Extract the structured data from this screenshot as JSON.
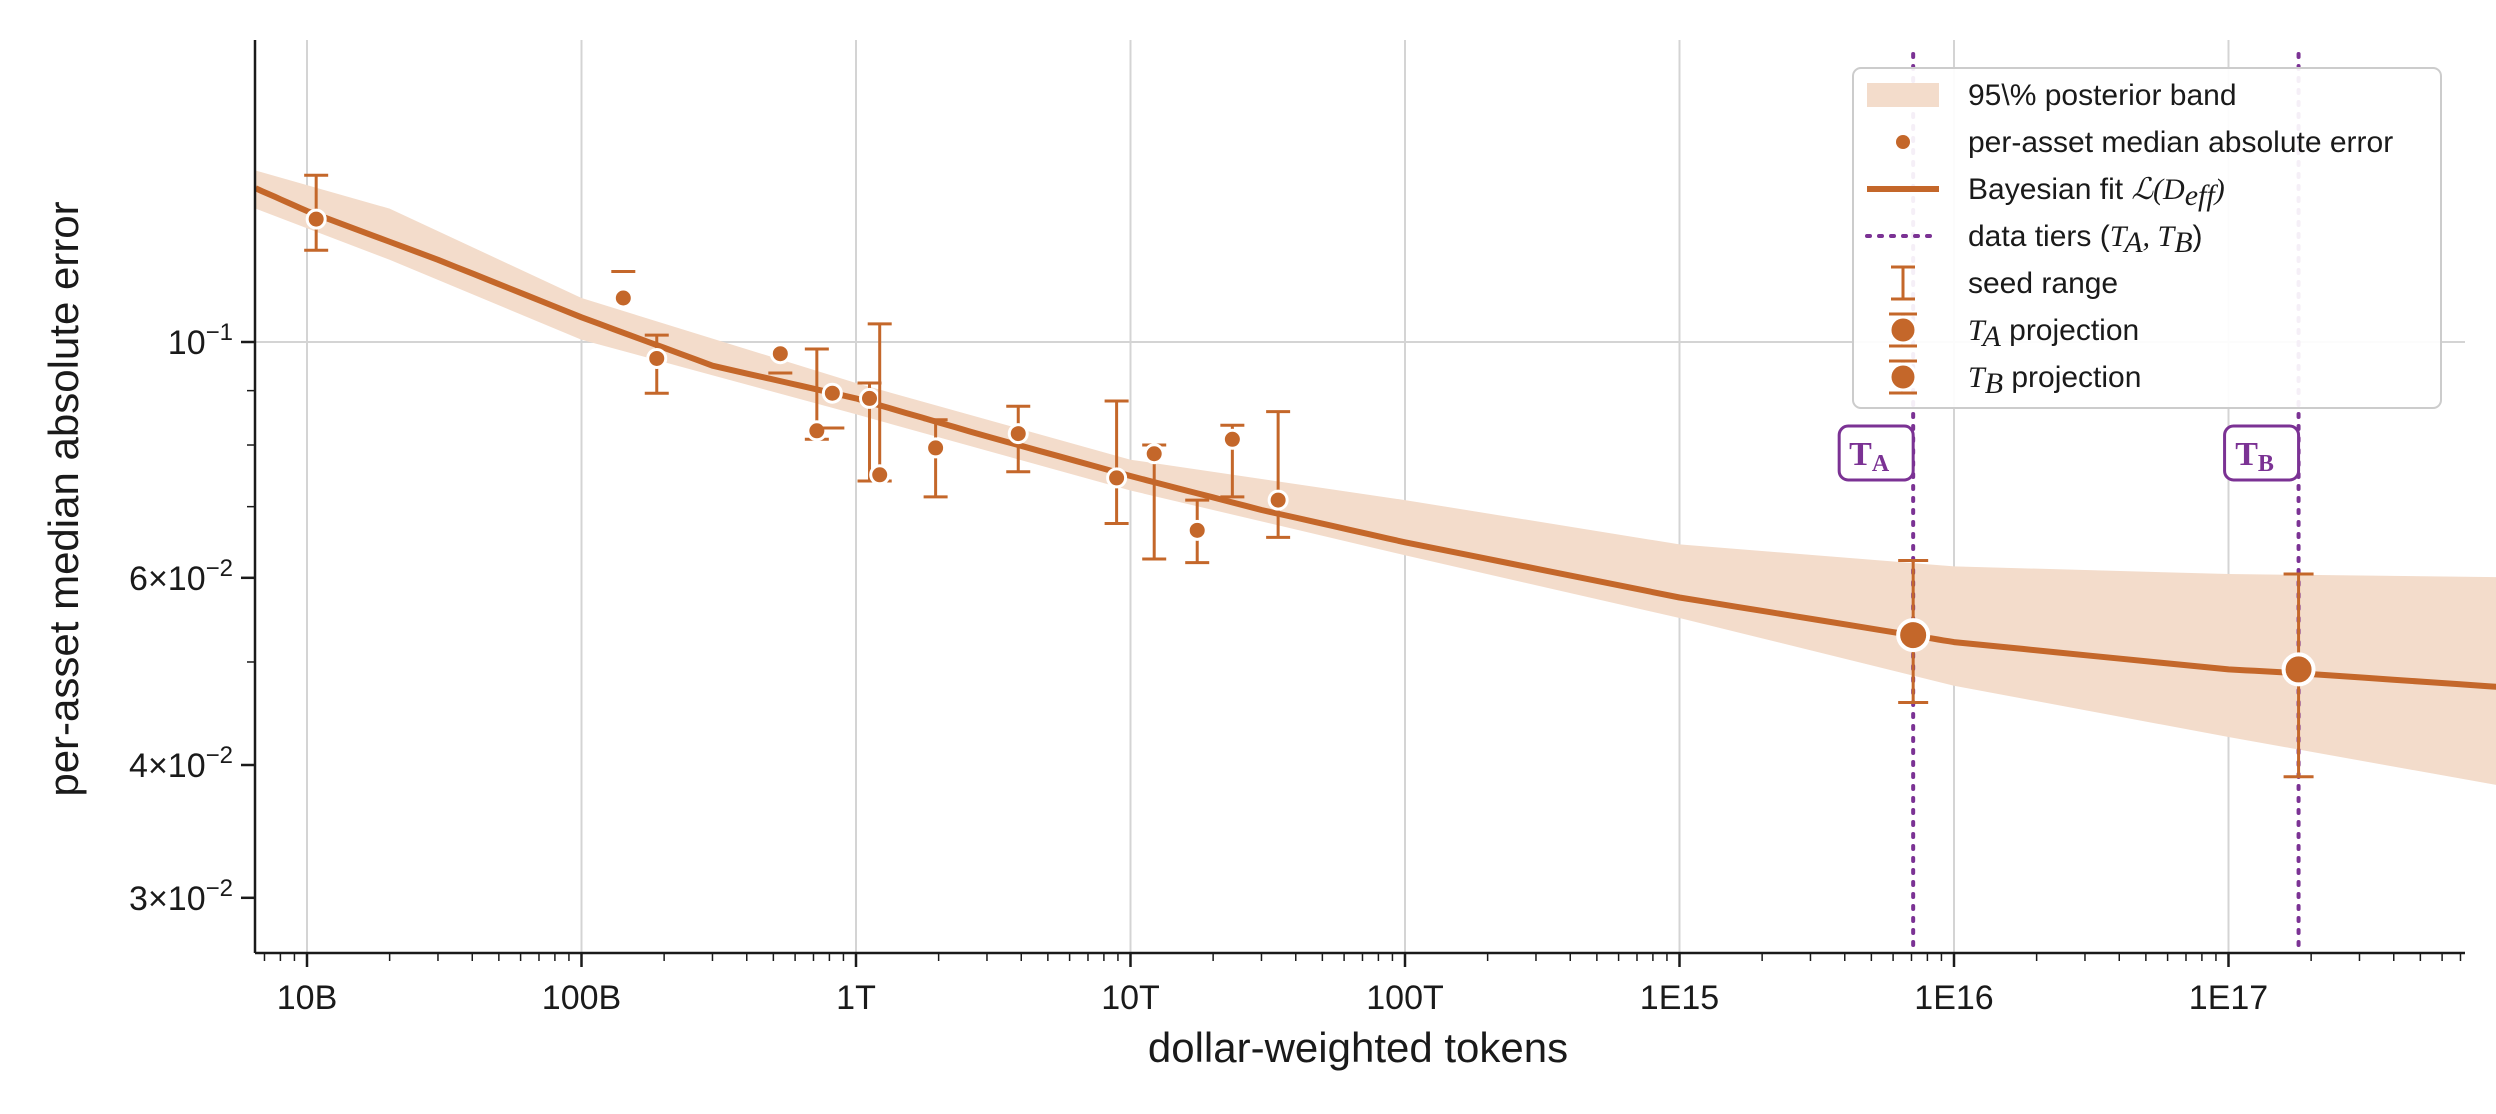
{
  "colors": {
    "main": "#c4672a",
    "band": "#f3dccb",
    "tier": "#7b3294",
    "grid": "#d4d4d4",
    "axis": "#1a1a1a"
  },
  "chart_data": {
    "type": "scatter",
    "xlabel": "dollar-weighted tokens",
    "ylabel": "per-asset median absolute error",
    "x_scale": "log",
    "y_scale": "log",
    "xlim": [
      6500000000.0,
      2.8e+18
    ],
    "ylim": [
      0.0268,
      0.174
    ],
    "grid": true,
    "legend_position": "top-right",
    "x_ticks": [
      {
        "value": 10000000000.0,
        "label": "10B"
      },
      {
        "value": 100000000000.0,
        "label": "100B"
      },
      {
        "value": 1000000000000.0,
        "label": "1T"
      },
      {
        "value": 10000000000000.0,
        "label": "10T"
      },
      {
        "value": 100000000000000.0,
        "label": "100T"
      },
      {
        "value": 1000000000000000.0,
        "label": "1E15"
      },
      {
        "value": 1e+16,
        "label": "1E16"
      },
      {
        "value": 1e+17,
        "label": "1E17"
      }
    ],
    "y_ticks": [
      {
        "value": 0.1,
        "base": "10",
        "exp": "−1"
      },
      {
        "value": 0.06,
        "base": "6×10",
        "exp": "−2"
      },
      {
        "value": 0.04,
        "base": "4×10",
        "exp": "−2"
      },
      {
        "value": 0.03,
        "base": "3×10",
        "exp": "−2"
      }
    ],
    "y_minor_ticks": [
      0.05,
      0.07,
      0.08,
      0.09
    ],
    "band": [
      {
        "x": 6500000000.0,
        "low": 0.1335,
        "high": 0.145
      },
      {
        "x": 20000000000.0,
        "low": 0.1195,
        "high": 0.1335
      },
      {
        "x": 100000000000.0,
        "low": 0.1005,
        "high": 0.11
      },
      {
        "x": 1000000000000.0,
        "low": 0.0855,
        "high": 0.0915
      },
      {
        "x": 10000000000000.0,
        "low": 0.0725,
        "high": 0.0775
      },
      {
        "x": 100000000000000.0,
        "low": 0.063,
        "high": 0.071
      },
      {
        "x": 1000000000000000.0,
        "low": 0.055,
        "high": 0.0645
      },
      {
        "x": 1e+16,
        "low": 0.0475,
        "high": 0.0615
      },
      {
        "x": 1e+17,
        "low": 0.0425,
        "high": 0.0605
      },
      {
        "x": 1.5e+18,
        "low": 0.0375,
        "high": 0.06
      }
    ],
    "fit": [
      {
        "x": 6500000000.0,
        "y": 0.1395
      },
      {
        "x": 10000000000.0,
        "y": 0.1328
      },
      {
        "x": 30000000000.0,
        "y": 0.1195
      },
      {
        "x": 100000000000.0,
        "y": 0.1055
      },
      {
        "x": 300000000000.0,
        "y": 0.095
      },
      {
        "x": 1000000000000.0,
        "y": 0.0885
      },
      {
        "x": 3000000000000.0,
        "y": 0.0815
      },
      {
        "x": 10000000000000.0,
        "y": 0.0748
      },
      {
        "x": 30000000000000.0,
        "y": 0.0695
      },
      {
        "x": 100000000000000.0,
        "y": 0.0648
      },
      {
        "x": 1000000000000000.0,
        "y": 0.0575
      },
      {
        "x": 7000000000000000.0,
        "y": 0.053
      },
      {
        "x": 1e+16,
        "y": 0.0522
      },
      {
        "x": 1e+17,
        "y": 0.0492
      },
      {
        "x": 1.8e+17,
        "y": 0.0488
      },
      {
        "x": 1.5e+18,
        "y": 0.047
      }
    ],
    "points": [
      {
        "x": 10800000000.0,
        "y": 0.1305,
        "ylo": 0.122,
        "yhi": 0.1435
      },
      {
        "x": 142000000000.0,
        "y": 0.11,
        "ylo": null,
        "yhi": 0.1165
      },
      {
        "x": 188000000000.0,
        "y": 0.0965,
        "ylo": 0.0895,
        "yhi": 0.1015
      },
      {
        "x": 530000000000.0,
        "y": 0.0975,
        "ylo": 0.0935,
        "yhi": null
      },
      {
        "x": 720000000000.0,
        "y": 0.0825,
        "ylo": 0.081,
        "yhi": 0.0985
      },
      {
        "x": 820000000000.0,
        "y": 0.0895,
        "ylo": 0.083,
        "yhi": null
      },
      {
        "x": 1120000000000.0,
        "y": 0.0885,
        "ylo": 0.074,
        "yhi": 0.0915
      },
      {
        "x": 1220000000000.0,
        "y": 0.075,
        "ylo": 0.074,
        "yhi": 0.104
      },
      {
        "x": 1950000000000.0,
        "y": 0.0795,
        "ylo": 0.0715,
        "yhi": 0.0845
      },
      {
        "x": 3900000000000.0,
        "y": 0.082,
        "ylo": 0.0755,
        "yhi": 0.087
      },
      {
        "x": 8900000000000.0,
        "y": 0.0745,
        "ylo": 0.0675,
        "yhi": 0.088
      },
      {
        "x": 12200000000000.0,
        "y": 0.0785,
        "ylo": 0.0625,
        "yhi": 0.08
      },
      {
        "x": 17500000000000.0,
        "y": 0.0665,
        "ylo": 0.062,
        "yhi": 0.071
      },
      {
        "x": 23500000000000.0,
        "y": 0.081,
        "ylo": 0.0715,
        "yhi": 0.0835
      },
      {
        "x": 34500000000000.0,
        "y": 0.071,
        "ylo": 0.0655,
        "yhi": 0.086
      }
    ],
    "projections": [
      {
        "name": "T_A",
        "x": 7100000000000000.0,
        "y": 0.053,
        "ylo": 0.0458,
        "yhi": 0.0623
      },
      {
        "name": "T_B",
        "x": 1.8e+17,
        "y": 0.0492,
        "ylo": 0.039,
        "yhi": 0.0605
      }
    ],
    "tiers": [
      {
        "x": 7100000000000000.0,
        "label_main": "T",
        "label_sub": "A"
      },
      {
        "x": 1.8e+17,
        "label_main": "T",
        "label_sub": "B"
      }
    ],
    "legend": [
      {
        "kind": "band",
        "text": "95\\% posterior band"
      },
      {
        "kind": "point",
        "text": "per-asset median absolute error"
      },
      {
        "kind": "line",
        "text": "Bayesian fit",
        "math": "ℒ(D",
        "math_sub": "eff",
        "math_end": ")"
      },
      {
        "kind": "tier",
        "text": "data tiers (",
        "math": "T",
        "sub1": "A",
        "sep": ", T",
        "sub2": "B",
        "end": ")"
      },
      {
        "kind": "errbar",
        "text": "seed range"
      },
      {
        "kind": "proj",
        "math": "T",
        "sub": "A",
        "text": " projection"
      },
      {
        "kind": "proj2",
        "math": "T",
        "sub": "B",
        "text": " projection"
      }
    ]
  }
}
